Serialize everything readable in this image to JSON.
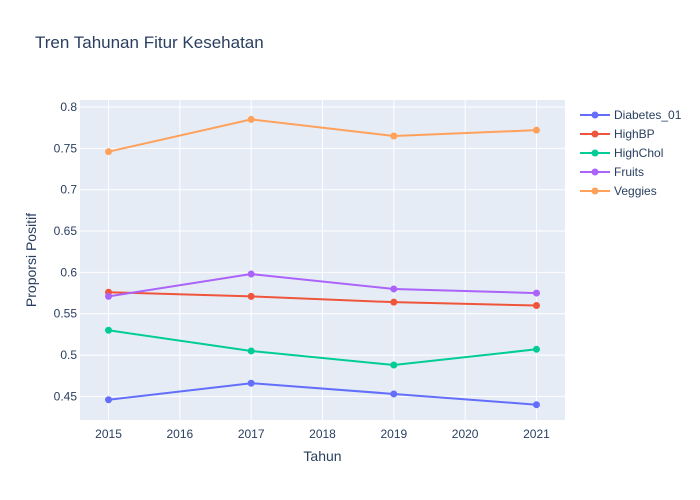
{
  "chart_data": {
    "type": "line",
    "title": "Tren Tahunan Fitur Kesehatan",
    "xlabel": "Tahun",
    "ylabel": "Proporsi Positif",
    "x": [
      2015,
      2017,
      2019,
      2021
    ],
    "x_ticks": [
      "2015",
      "2016",
      "2017",
      "2018",
      "2019",
      "2020",
      "2021"
    ],
    "xlim": [
      2014.6,
      2021.4
    ],
    "y_ticks": [
      "0.45",
      "0.5",
      "0.55",
      "0.6",
      "0.65",
      "0.7",
      "0.75",
      "0.8"
    ],
    "ylim": [
      0.4215,
      0.8085
    ],
    "grid": true,
    "legend_position": "top-right",
    "plot_background": "#e5ecf6",
    "series": [
      {
        "name": "Diabetes_01",
        "color": "#636efa",
        "values": [
          0.446,
          0.466,
          0.453,
          0.44
        ]
      },
      {
        "name": "HighBP",
        "color": "#ef553b",
        "values": [
          0.576,
          0.571,
          0.564,
          0.56
        ]
      },
      {
        "name": "HighChol",
        "color": "#00cc96",
        "values": [
          0.53,
          0.505,
          0.488,
          0.507
        ]
      },
      {
        "name": "Fruits",
        "color": "#ab63fa",
        "values": [
          0.571,
          0.598,
          0.58,
          0.575
        ]
      },
      {
        "name": "Veggies",
        "color": "#ffa15a",
        "values": [
          0.746,
          0.785,
          0.765,
          0.772
        ]
      }
    ]
  }
}
